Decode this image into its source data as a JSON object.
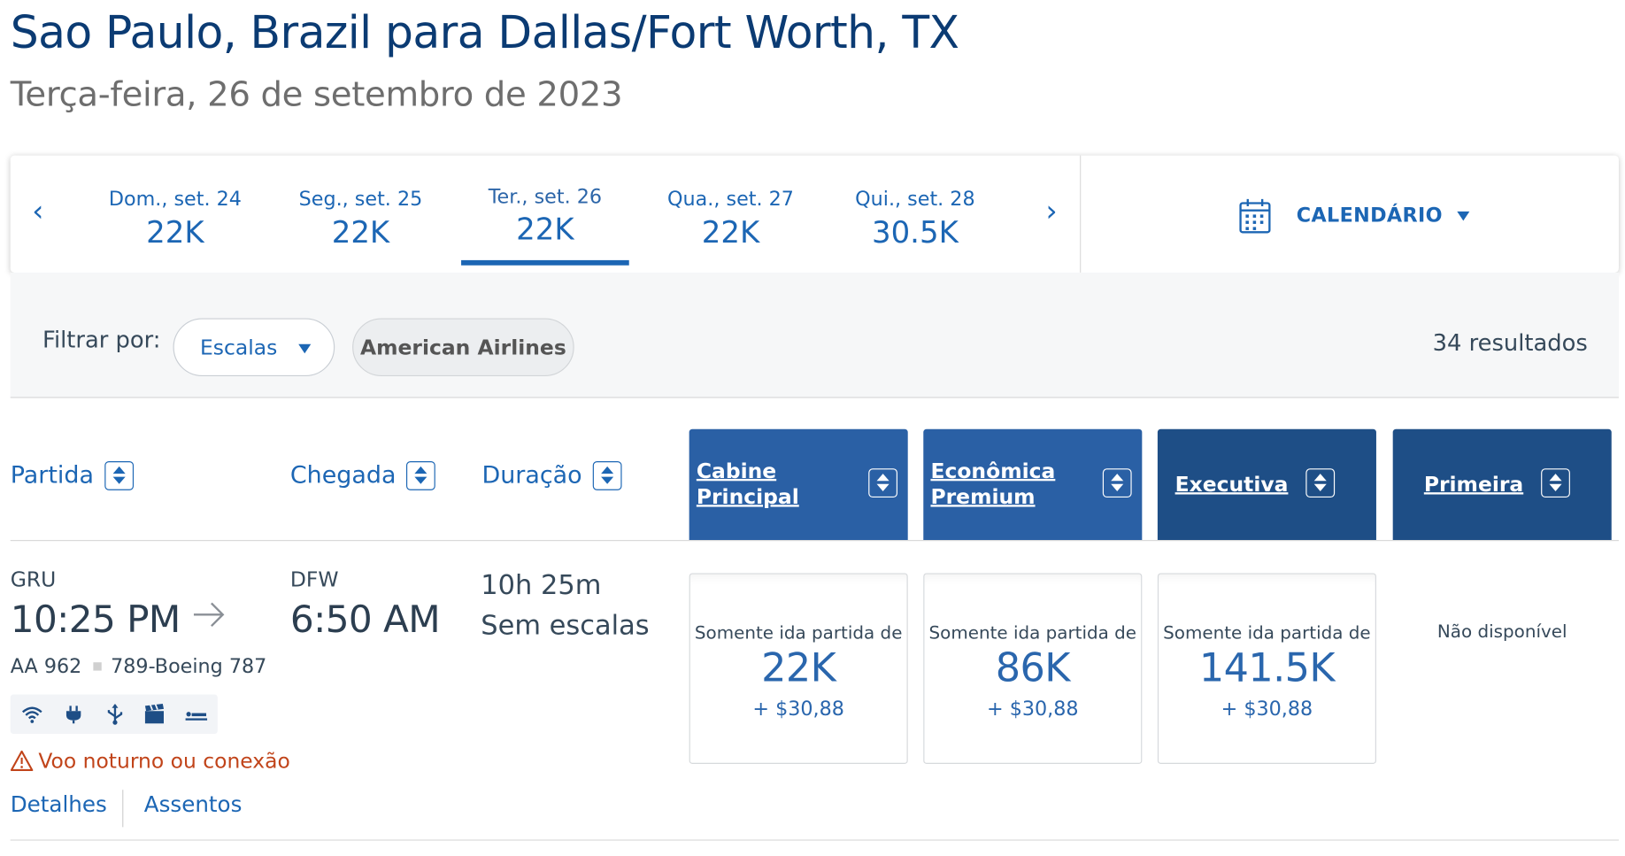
{
  "header": {
    "route_title": "Sao Paulo, Brazil para Dallas/Fort Worth, TX",
    "date_subtitle": "Terça-feira, 26 de setembro de 2023"
  },
  "date_strip": {
    "prev_icon": "chevron-left-icon",
    "next_icon": "chevron-right-icon",
    "dates": [
      {
        "label": "Dom., set. 24",
        "price": "22K",
        "selected": false
      },
      {
        "label": "Seg., set. 25",
        "price": "22K",
        "selected": false
      },
      {
        "label": "Ter., set. 26",
        "price": "22K",
        "selected": true
      },
      {
        "label": "Qua., set. 27",
        "price": "22K",
        "selected": false
      },
      {
        "label": "Qui., set. 28",
        "price": "30.5K",
        "selected": false
      }
    ],
    "calendar_label": "CALENDÁRIO",
    "calendar_icon": "calendar-icon"
  },
  "filters": {
    "label": "Filtrar por:",
    "stops_dropdown": "Escalas",
    "airline_chip": "American Airlines",
    "results_count": "34 resultados"
  },
  "columns": {
    "departure": "Partida",
    "arrival": "Chegada",
    "duration": "Duração",
    "cabins": [
      {
        "label": "Cabine Principal"
      },
      {
        "label": "Econômica Premium"
      },
      {
        "label": "Executiva"
      },
      {
        "label": "Primeira"
      }
    ]
  },
  "flight": {
    "origin_code": "GRU",
    "depart_time": "10:25 PM",
    "dest_code": "DFW",
    "arrive_time": "6:50 AM",
    "duration": "10h 25m",
    "stops": "Sem escalas",
    "flight_number": "AA 962",
    "aircraft": "789-Boeing 787",
    "amenities": [
      "wifi-icon",
      "power-outlet-icon",
      "usb-icon",
      "entertainment-icon",
      "lie-flat-seat-icon"
    ],
    "warning": "Voo noturno ou conexão",
    "details_link": "Detalhes",
    "seats_link": "Assentos",
    "fares": [
      {
        "from": "Somente ida partida de",
        "miles": "22K",
        "tax": "+ $30,88"
      },
      {
        "from": "Somente ida partida de",
        "miles": "86K",
        "tax": "+ $30,88"
      },
      {
        "from": "Somente ida partida de",
        "miles": "141.5K",
        "tax": "+ $30,88"
      }
    ],
    "first_unavailable": "Não disponível"
  },
  "colors": {
    "brand_blue": "#1c66b4",
    "cabin_mid": "#2a60a5",
    "cabin_dark": "#1e4e86",
    "title_navy": "#0b3b73",
    "warning": "#c1441a"
  }
}
